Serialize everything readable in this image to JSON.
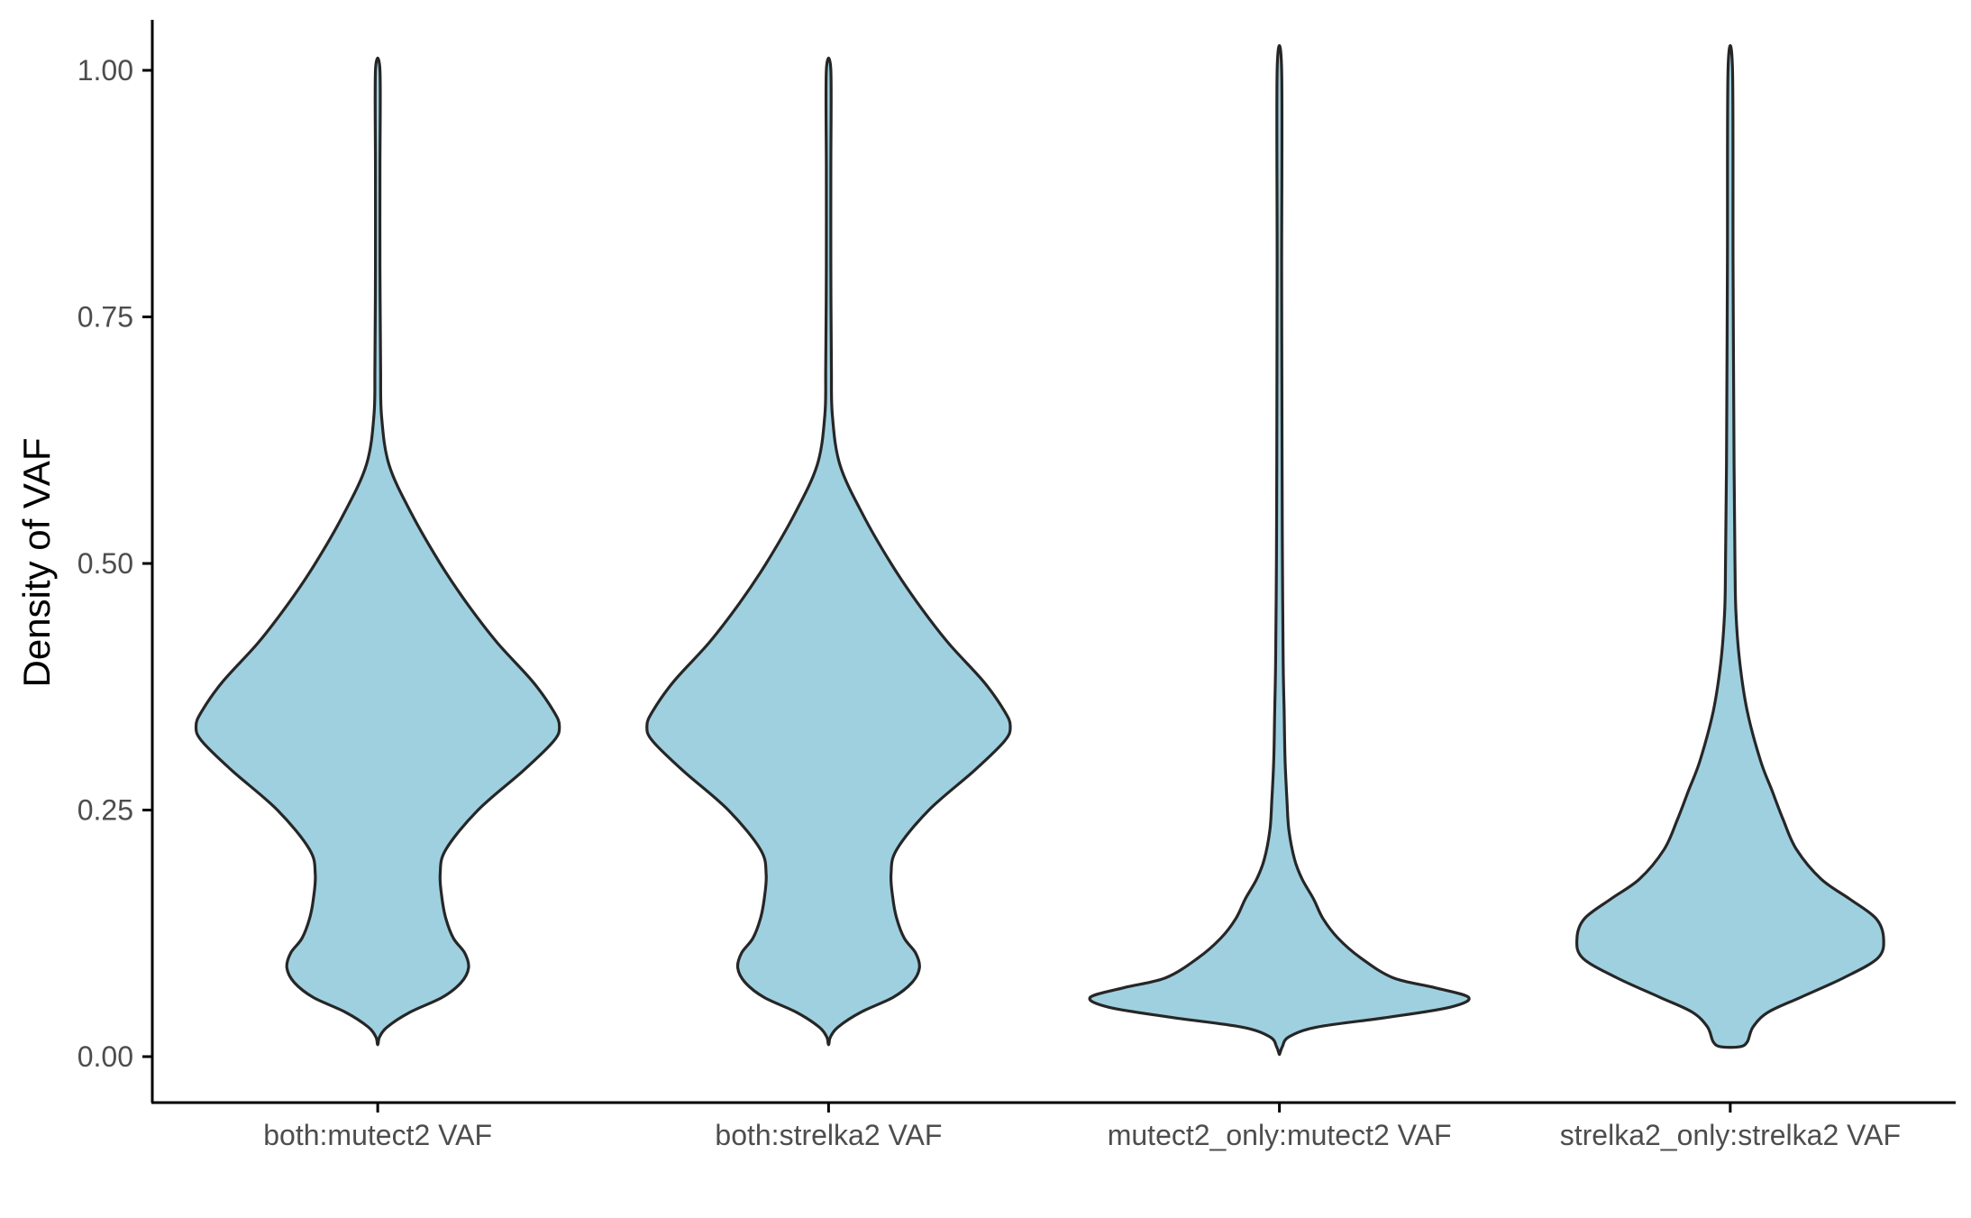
{
  "chart_data": {
    "type": "violin",
    "title": "",
    "xlabel": "",
    "ylabel": "Density of VAF",
    "ylim": [
      -0.045,
      1.05
    ],
    "y_ticks": [
      0.0,
      0.25,
      0.5,
      0.75,
      1.0
    ],
    "y_tick_labels": [
      "0.00",
      "0.25",
      "0.50",
      "0.75",
      "1.00"
    ],
    "grid": false,
    "legend": "none",
    "fill_color": "#9fd0e0",
    "stroke_color": "#262626",
    "categories": [
      "both:mutect2 VAF",
      "both:strelka2 VAF",
      "mutect2_only:mutect2 VAF",
      "strelka2_only:strelka2 VAF"
    ],
    "series": [
      {
        "category": "both:mutect2 VAF",
        "min": 0.013,
        "max": 1.0,
        "profile": [
          [
            0.013,
            0.002
          ],
          [
            0.02,
            0.01
          ],
          [
            0.03,
            0.05
          ],
          [
            0.045,
            0.17
          ],
          [
            0.06,
            0.34
          ],
          [
            0.075,
            0.44
          ],
          [
            0.09,
            0.48
          ],
          [
            0.105,
            0.46
          ],
          [
            0.12,
            0.4
          ],
          [
            0.14,
            0.36
          ],
          [
            0.16,
            0.34
          ],
          [
            0.185,
            0.33
          ],
          [
            0.21,
            0.36
          ],
          [
            0.25,
            0.53
          ],
          [
            0.29,
            0.77
          ],
          [
            0.32,
            0.93
          ],
          [
            0.335,
            0.96
          ],
          [
            0.35,
            0.93
          ],
          [
            0.38,
            0.82
          ],
          [
            0.42,
            0.63
          ],
          [
            0.46,
            0.47
          ],
          [
            0.5,
            0.33
          ],
          [
            0.55,
            0.18
          ],
          [
            0.6,
            0.06
          ],
          [
            0.65,
            0.02
          ],
          [
            0.7,
            0.015
          ],
          [
            0.8,
            0.012
          ],
          [
            0.9,
            0.012
          ],
          [
            1.0,
            0.012
          ]
        ]
      },
      {
        "category": "both:strelka2 VAF",
        "min": 0.013,
        "max": 1.0,
        "profile": [
          [
            0.013,
            0.002
          ],
          [
            0.02,
            0.01
          ],
          [
            0.03,
            0.05
          ],
          [
            0.045,
            0.17
          ],
          [
            0.06,
            0.34
          ],
          [
            0.075,
            0.44
          ],
          [
            0.09,
            0.48
          ],
          [
            0.105,
            0.46
          ],
          [
            0.12,
            0.4
          ],
          [
            0.14,
            0.36
          ],
          [
            0.16,
            0.34
          ],
          [
            0.185,
            0.33
          ],
          [
            0.21,
            0.36
          ],
          [
            0.25,
            0.53
          ],
          [
            0.29,
            0.77
          ],
          [
            0.32,
            0.93
          ],
          [
            0.335,
            0.96
          ],
          [
            0.35,
            0.93
          ],
          [
            0.38,
            0.82
          ],
          [
            0.42,
            0.63
          ],
          [
            0.46,
            0.47
          ],
          [
            0.5,
            0.33
          ],
          [
            0.55,
            0.18
          ],
          [
            0.6,
            0.06
          ],
          [
            0.65,
            0.02
          ],
          [
            0.7,
            0.015
          ],
          [
            0.8,
            0.012
          ],
          [
            0.9,
            0.012
          ],
          [
            1.0,
            0.012
          ]
        ]
      },
      {
        "category": "mutect2_only:mutect2 VAF",
        "min": 0.003,
        "max": 1.0,
        "profile": [
          [
            0.003,
            0.002
          ],
          [
            0.01,
            0.015
          ],
          [
            0.02,
            0.05
          ],
          [
            0.03,
            0.2
          ],
          [
            0.04,
            0.58
          ],
          [
            0.05,
            0.9
          ],
          [
            0.06,
            1.0
          ],
          [
            0.07,
            0.82
          ],
          [
            0.08,
            0.6
          ],
          [
            0.1,
            0.43
          ],
          [
            0.12,
            0.31
          ],
          [
            0.14,
            0.23
          ],
          [
            0.16,
            0.18
          ],
          [
            0.18,
            0.12
          ],
          [
            0.2,
            0.08
          ],
          [
            0.23,
            0.05
          ],
          [
            0.26,
            0.04
          ],
          [
            0.3,
            0.03
          ],
          [
            0.35,
            0.025
          ],
          [
            0.4,
            0.02
          ],
          [
            0.5,
            0.016
          ],
          [
            0.6,
            0.014
          ],
          [
            0.8,
            0.012
          ],
          [
            1.0,
            0.012
          ]
        ]
      },
      {
        "category": "strelka2_only:strelka2 VAF",
        "min": 0.01,
        "max": 1.0,
        "profile": [
          [
            0.01,
            0.05
          ],
          [
            0.015,
            0.09
          ],
          [
            0.03,
            0.12
          ],
          [
            0.045,
            0.2
          ],
          [
            0.06,
            0.37
          ],
          [
            0.08,
            0.6
          ],
          [
            0.1,
            0.78
          ],
          [
            0.12,
            0.81
          ],
          [
            0.14,
            0.77
          ],
          [
            0.16,
            0.63
          ],
          [
            0.18,
            0.48
          ],
          [
            0.21,
            0.35
          ],
          [
            0.24,
            0.28
          ],
          [
            0.27,
            0.22
          ],
          [
            0.3,
            0.16
          ],
          [
            0.35,
            0.09
          ],
          [
            0.4,
            0.05
          ],
          [
            0.45,
            0.03
          ],
          [
            0.5,
            0.025
          ],
          [
            0.6,
            0.02
          ],
          [
            0.8,
            0.015
          ],
          [
            1.0,
            0.012
          ]
        ]
      }
    ]
  }
}
